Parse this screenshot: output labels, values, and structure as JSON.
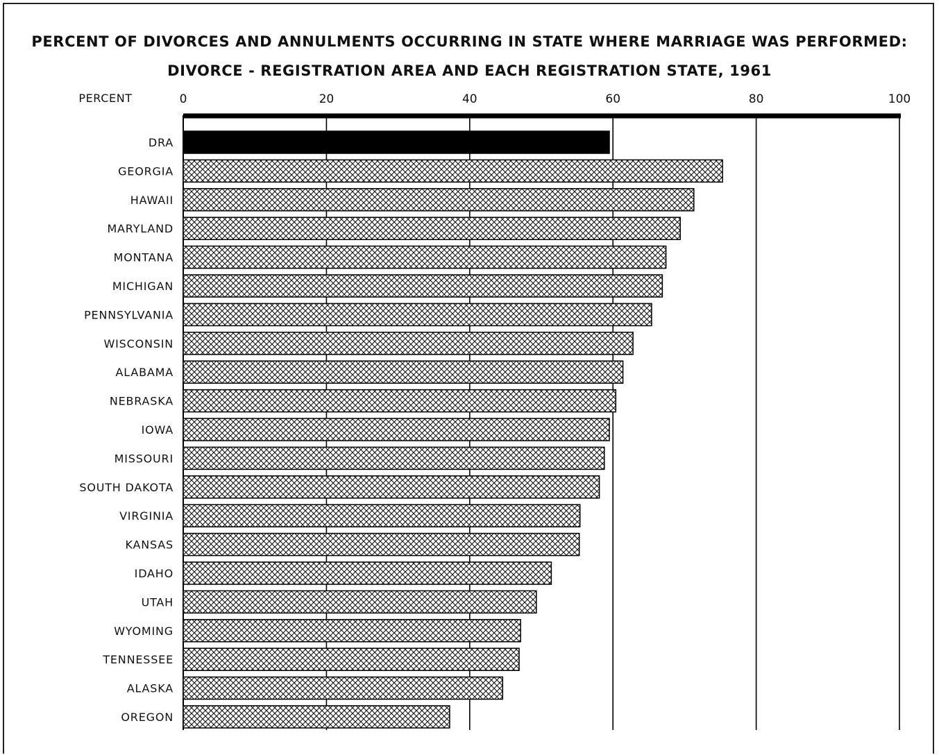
{
  "chart_data": {
    "type": "bar",
    "orientation": "horizontal",
    "title": "PERCENT OF DIVORCES AND ANNULMENTS OCCURRING IN  STATE WHERE MARRIAGE WAS PERFORMED:",
    "subtitle": "DIVORCE - REGISTRATION  AREA  AND  EACH  REGISTRATION  STATE, 1961",
    "xlabel": "PERCENT",
    "ylabel": "",
    "xlim": [
      0,
      100
    ],
    "xticks": [
      0,
      20,
      40,
      60,
      80,
      100
    ],
    "grid": true,
    "categories": [
      "DRA",
      "GEORGIA",
      "HAWAII",
      "MARYLAND",
      "MONTANA",
      "MICHIGAN",
      "PENNSYLVANIA",
      "WISCONSIN",
      "ALABAMA",
      "NEBRASKA",
      "IOWA",
      "MISSOURI",
      "SOUTH  DAKOTA",
      "VIRGINIA",
      "KANSAS",
      "IDAHO",
      "UTAH",
      "WYOMING",
      "TENNESSEE",
      "ALASKA",
      "OREGON"
    ],
    "values": [
      59.5,
      75.3,
      71.3,
      69.4,
      67.4,
      66.9,
      65.4,
      62.8,
      61.4,
      60.4,
      59.5,
      58.8,
      58.1,
      55.4,
      55.3,
      51.4,
      49.3,
      47.1,
      46.9,
      44.6,
      37.2
    ],
    "colors": {
      "summary_bar": "#000000",
      "state_bar_pattern": "#111111",
      "background": "#ffffff"
    }
  }
}
